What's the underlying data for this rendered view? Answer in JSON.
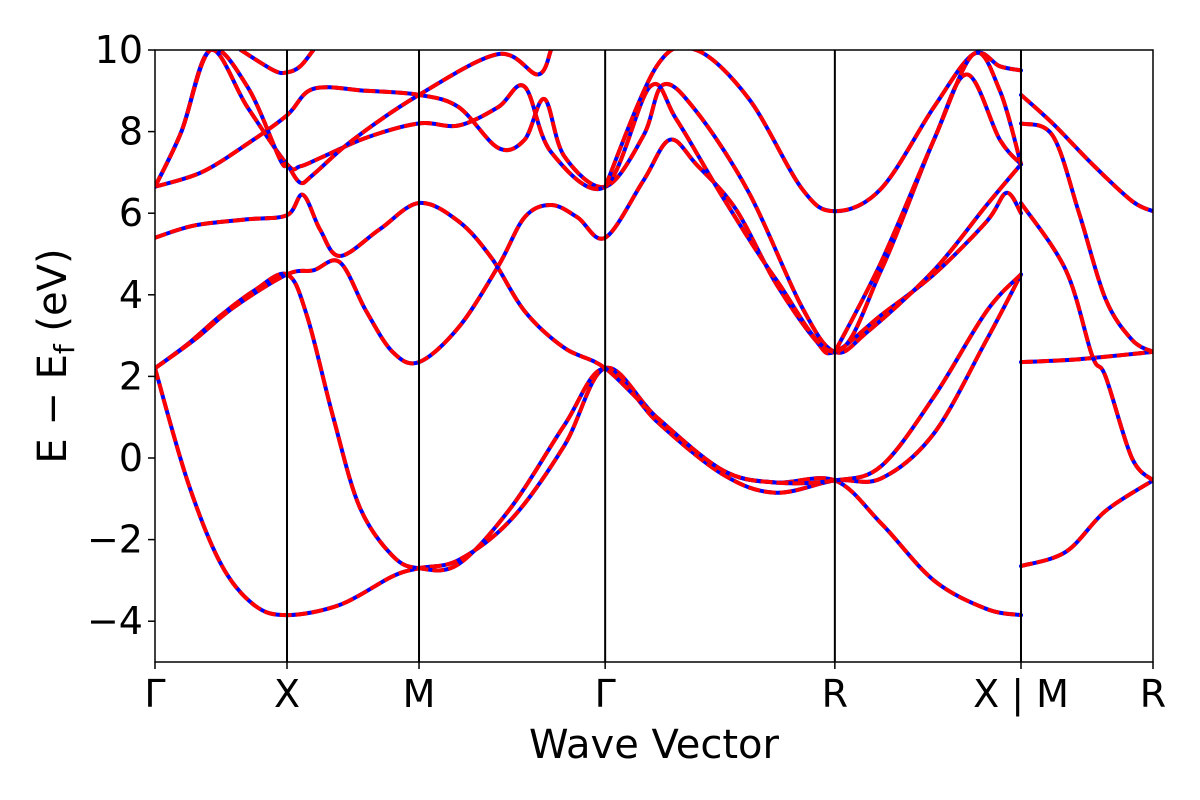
{
  "chart_data": {
    "type": "line",
    "xlabel": "Wave Vector",
    "ylabel": "E − E",
    "ylabel_sub": "f",
    "ylabel_unit": " (eV)",
    "ylim": [
      -5,
      10
    ],
    "y_ticks": [
      -4,
      -2,
      0,
      2,
      4,
      6,
      8,
      10
    ],
    "y_tick_labels": [
      "−4",
      "−2",
      "0",
      "2",
      "4",
      "6",
      "8",
      "10"
    ],
    "x_ticks": [
      {
        "x": 0,
        "label": "Γ"
      },
      {
        "x": 1,
        "label": "X"
      },
      {
        "x": 2,
        "label": "M"
      },
      {
        "x": 3.41,
        "label": "Γ"
      },
      {
        "x": 5.15,
        "label": "R"
      },
      {
        "x": 6.56,
        "label": "X | M"
      },
      {
        "x": 7.56,
        "label": "R"
      }
    ],
    "xlim": [
      0,
      7.56
    ],
    "grid": false,
    "series_style": [
      {
        "color": "#0000ff",
        "style": "solid"
      },
      {
        "color": "#ff0000",
        "style": "dashed"
      }
    ],
    "bands": [
      [
        [
          0,
          2.2
        ],
        [
          0.25,
          -0.6
        ],
        [
          0.5,
          -2.6
        ],
        [
          0.75,
          -3.6
        ],
        [
          1,
          -3.85
        ],
        [
          1.4,
          -3.6
        ],
        [
          1.8,
          -2.9
        ],
        [
          2,
          -2.7
        ],
        [
          2.3,
          -2.5
        ],
        [
          2.7,
          -1.5
        ],
        [
          3.1,
          0.3
        ],
        [
          3.41,
          2.2
        ],
        [
          3.8,
          1.0
        ],
        [
          4.3,
          -0.3
        ],
        [
          4.7,
          -0.6
        ],
        [
          5.15,
          -0.55
        ],
        [
          5.5,
          -1.6
        ],
        [
          5.9,
          -3.0
        ],
        [
          6.3,
          -3.7
        ],
        [
          6.56,
          -3.85
        ]
      ],
      [
        [
          0,
          2.2
        ],
        [
          0.25,
          2.8
        ],
        [
          0.5,
          3.5
        ],
        [
          0.75,
          4.1
        ],
        [
          1,
          4.5
        ],
        [
          1.15,
          3.5
        ],
        [
          1.35,
          1.0
        ],
        [
          1.55,
          -1.2
        ],
        [
          1.8,
          -2.4
        ],
        [
          2,
          -2.7
        ],
        [
          2.3,
          -2.6
        ],
        [
          2.7,
          -1.2
        ],
        [
          3.1,
          0.8
        ],
        [
          3.41,
          2.2
        ],
        [
          3.8,
          0.9
        ],
        [
          4.3,
          -0.4
        ],
        [
          4.7,
          -0.85
        ],
        [
          5.15,
          -0.55
        ],
        [
          5.5,
          -0.5
        ],
        [
          5.9,
          0.6
        ],
        [
          6.3,
          2.9
        ],
        [
          6.56,
          4.5
        ]
      ],
      [
        [
          0,
          5.4
        ],
        [
          0.3,
          5.7
        ],
        [
          0.7,
          5.85
        ],
        [
          1,
          5.95
        ],
        [
          1.12,
          6.45
        ],
        [
          1.25,
          5.6
        ],
        [
          1.4,
          4.95
        ],
        [
          1.7,
          5.6
        ],
        [
          2,
          6.25
        ],
        [
          2.3,
          5.8
        ],
        [
          2.55,
          4.9
        ],
        [
          2.8,
          3.6
        ],
        [
          3.1,
          2.7
        ],
        [
          3.41,
          2.2
        ],
        [
          3.8,
          1.0
        ],
        [
          4.3,
          -0.3
        ],
        [
          4.7,
          -0.6
        ],
        [
          5.15,
          -0.55
        ],
        [
          5.5,
          -0.2
        ],
        [
          5.9,
          1.5
        ],
        [
          6.3,
          3.6
        ],
        [
          6.56,
          4.5
        ]
      ],
      [
        [
          0,
          2.2
        ],
        [
          0.3,
          2.9
        ],
        [
          0.6,
          3.7
        ],
        [
          1,
          4.5
        ],
        [
          1.2,
          4.6
        ],
        [
          1.4,
          4.8
        ],
        [
          1.6,
          3.6
        ],
        [
          1.8,
          2.6
        ],
        [
          2,
          2.35
        ],
        [
          2.3,
          3.2
        ],
        [
          2.6,
          4.7
        ],
        [
          2.8,
          5.9
        ],
        [
          3.0,
          6.2
        ],
        [
          3.2,
          5.9
        ],
        [
          3.41,
          5.4
        ],
        [
          3.7,
          6.8
        ],
        [
          3.9,
          7.8
        ],
        [
          4.1,
          7.2
        ],
        [
          4.4,
          6.1
        ],
        [
          4.7,
          4.3
        ],
        [
          5.0,
          2.9
        ],
        [
          5.15,
          2.6
        ],
        [
          5.5,
          3.5
        ],
        [
          5.9,
          4.5
        ],
        [
          6.3,
          5.8
        ],
        [
          6.45,
          6.5
        ],
        [
          6.56,
          6.0
        ]
      ],
      [
        [
          0,
          6.65
        ],
        [
          0.35,
          7.0
        ],
        [
          0.7,
          7.7
        ],
        [
          1,
          8.4
        ],
        [
          1.2,
          9.05
        ],
        [
          1.6,
          9.0
        ],
        [
          2,
          8.9
        ],
        [
          2.3,
          8.6
        ],
        [
          2.6,
          7.6
        ],
        [
          2.8,
          7.8
        ],
        [
          2.95,
          8.8
        ],
        [
          3.1,
          7.4
        ],
        [
          3.41,
          6.65
        ],
        [
          3.7,
          7.9
        ],
        [
          3.85,
          9.15
        ],
        [
          4.1,
          8.5
        ],
        [
          4.5,
          6.5
        ],
        [
          4.9,
          3.7
        ],
        [
          5.15,
          2.6
        ],
        [
          5.4,
          3.1
        ],
        [
          5.9,
          4.6
        ],
        [
          6.3,
          6.2
        ],
        [
          6.56,
          7.2
        ]
      ],
      [
        [
          0,
          6.65
        ],
        [
          0.2,
          8.0
        ],
        [
          0.42,
          10.0
        ],
        [
          0.7,
          8.6
        ],
        [
          1,
          7.2
        ],
        [
          1.1,
          7.15
        ],
        [
          1.25,
          7.35
        ],
        [
          1.6,
          7.85
        ],
        [
          2,
          8.2
        ],
        [
          2.3,
          8.15
        ],
        [
          2.6,
          8.6
        ],
        [
          2.8,
          9.1
        ],
        [
          3.0,
          7.5
        ],
        [
          3.41,
          6.65
        ],
        [
          3.75,
          9.1
        ],
        [
          3.95,
          8.3
        ],
        [
          4.3,
          6.4
        ],
        [
          4.7,
          4.4
        ],
        [
          5.15,
          2.6
        ],
        [
          5.5,
          4.6
        ],
        [
          5.9,
          7.8
        ],
        [
          6.15,
          9.4
        ],
        [
          6.4,
          7.8
        ],
        [
          6.56,
          7.2
        ]
      ],
      [
        [
          0,
          6.65
        ],
        [
          0.2,
          8.0
        ],
        [
          0.42,
          10.0
        ],
        [
          0.7,
          9.1
        ],
        [
          0.95,
          7.3
        ],
        [
          1,
          7.2
        ],
        [
          1.1,
          6.75
        ],
        [
          1.2,
          6.95
        ],
        [
          1.5,
          7.8
        ],
        [
          2,
          8.9
        ],
        [
          2.6,
          9.9
        ],
        [
          2.9,
          9.4
        ],
        [
          3.0,
          10.0
        ]
      ],
      [
        [
          3.41,
          6.65
        ],
        [
          3.8,
          9.6
        ],
        [
          4.1,
          10.0
        ],
        [
          4.5,
          8.8
        ],
        [
          4.9,
          6.6
        ],
        [
          5.15,
          6.05
        ],
        [
          5.5,
          6.6
        ],
        [
          5.9,
          8.6
        ],
        [
          6.2,
          9.9
        ],
        [
          6.4,
          9.6
        ],
        [
          6.56,
          9.5
        ]
      ],
      [
        [
          0.65,
          10.0
        ],
        [
          0.9,
          9.5
        ],
        [
          1,
          9.45
        ],
        [
          1.1,
          9.6
        ],
        [
          1.2,
          10.0
        ]
      ],
      [
        [
          5.15,
          2.6
        ],
        [
          5.5,
          4.8
        ],
        [
          5.9,
          7.8
        ],
        [
          6.2,
          9.9
        ],
        [
          6.4,
          9.0
        ],
        [
          6.56,
          7.2
        ]
      ],
      [
        [
          6.56,
          2.35
        ],
        [
          6.9,
          2.4
        ],
        [
          7.1,
          2.45
        ],
        [
          7.56,
          2.6
        ]
      ],
      [
        [
          6.56,
          -2.65
        ],
        [
          6.9,
          -2.3
        ],
        [
          7.2,
          -1.3
        ],
        [
          7.56,
          -0.55
        ]
      ],
      [
        [
          6.56,
          6.25
        ],
        [
          6.9,
          4.6
        ],
        [
          7.1,
          2.5
        ],
        [
          7.2,
          2.0
        ],
        [
          7.4,
          0.0
        ],
        [
          7.56,
          -0.55
        ]
      ],
      [
        [
          6.56,
          8.2
        ],
        [
          6.8,
          7.9
        ],
        [
          7.0,
          6.0
        ],
        [
          7.2,
          3.9
        ],
        [
          7.4,
          2.9
        ],
        [
          7.56,
          2.6
        ]
      ],
      [
        [
          6.56,
          8.9
        ],
        [
          6.8,
          8.2
        ],
        [
          7.1,
          7.2
        ],
        [
          7.4,
          6.3
        ],
        [
          7.56,
          6.05
        ]
      ]
    ]
  }
}
